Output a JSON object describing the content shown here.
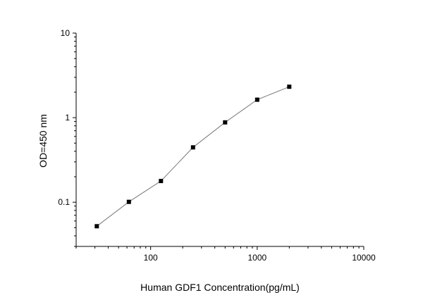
{
  "chart_data": {
    "type": "scatter",
    "xlabel": "Human GDF1 Concentration(pg/mL)",
    "ylabel": "OD=450 nm",
    "x_scale": "log",
    "y_scale": "log",
    "xlim": [
      20,
      10000
    ],
    "ylim": [
      0.03,
      10
    ],
    "x_ticks": [
      100,
      1000,
      10000
    ],
    "x_tick_labels": [
      "100",
      "1000",
      "10000"
    ],
    "y_ticks": [
      0.1,
      1,
      10
    ],
    "y_tick_labels": [
      "0.1",
      "1",
      "10"
    ],
    "grid": false,
    "series": [
      {
        "x": [
          31.25,
          62.5,
          125,
          250,
          500,
          1000,
          2000
        ],
        "y": [
          0.052,
          0.101,
          0.178,
          0.445,
          0.88,
          1.63,
          2.32
        ],
        "marker": "square",
        "line": true,
        "color": "#000000",
        "line_color": "#7a7a7a"
      }
    ]
  }
}
